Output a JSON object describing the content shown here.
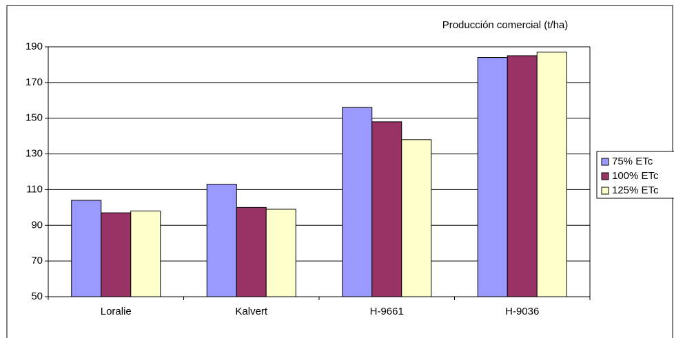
{
  "chart_data": {
    "type": "bar",
    "title": "Producción comercial (t/ha)",
    "categories": [
      "Loralie",
      "Kalvert",
      "H-9661",
      "H-9036"
    ],
    "series": [
      {
        "name": "75% ETc",
        "color": "#9999ff",
        "values": [
          104,
          113,
          156,
          184
        ]
      },
      {
        "name": "100% ETc",
        "color": "#993366",
        "values": [
          97,
          100,
          148,
          185
        ]
      },
      {
        "name": "125% ETc",
        "color": "#ffffcc",
        "values": [
          98,
          99,
          138,
          187
        ]
      }
    ],
    "ylim": [
      50,
      190
    ],
    "yticks": [
      50,
      70,
      90,
      110,
      130,
      150,
      170,
      190
    ],
    "grid": true,
    "legend": "right"
  }
}
